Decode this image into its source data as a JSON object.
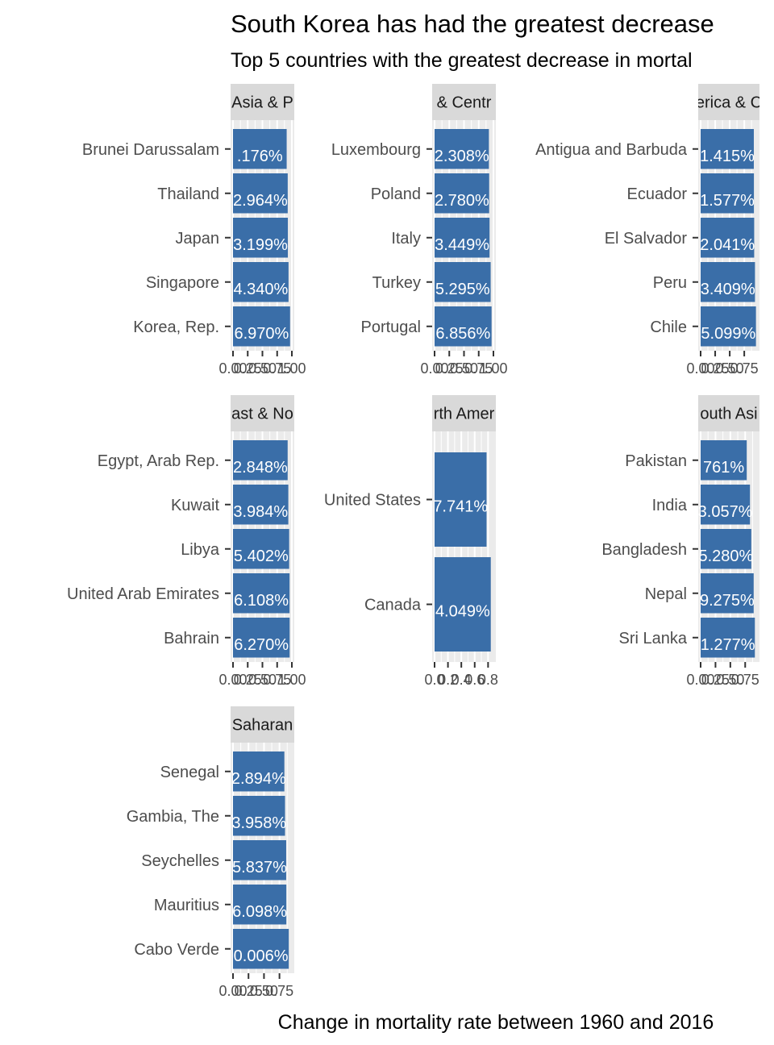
{
  "chart_data": {
    "type": "bar",
    "orientation": "horizontal",
    "title": "South Korea has had the greatest decrease",
    "subtitle": "Top 5 countries with the greatest decrease in mortal",
    "xlabel": "Change in mortality rate between 1960 and 2016",
    "ylabel": "",
    "grid": true,
    "colors": {
      "bar": "#3a6ea8",
      "panel": "#ebebeb",
      "strip": "#d9d9d9",
      "grid": "#ffffff"
    },
    "facets": [
      {
        "strip": "Asia & P",
        "categories": [
          "Brunei Darussalam",
          "Thailand",
          "Japan",
          "Singapore",
          "Korea, Rep."
        ],
        "values": [
          0.9118,
          0.9296,
          0.932,
          0.9434,
          0.9697
        ],
        "labels": [
          ".176%",
          "2.964%",
          "3.199%",
          "4.340%",
          "6.970%"
        ],
        "ticks": [
          "0.00",
          "0.25",
          "0.50",
          "0.75",
          "1.00"
        ],
        "xlim": [
          0,
          1.0
        ]
      },
      {
        "strip": "& Centr",
        "categories": [
          "Luxembourg",
          "Poland",
          "Italy",
          "Turkey",
          "Portugal"
        ],
        "values": [
          0.9231,
          0.9278,
          0.9345,
          0.953,
          0.9686
        ],
        "labels": [
          "2.308%",
          "2.780%",
          "3.449%",
          "5.295%",
          "6.856%"
        ],
        "ticks": [
          "0.00",
          "0.25",
          "0.50",
          "0.75",
          "1.00"
        ],
        "xlim": [
          0,
          1.0
        ]
      },
      {
        "strip": "erica & C",
        "categories": [
          "Antigua and Barbuda",
          "Ecuador",
          "El Salvador",
          "Peru",
          "Chile"
        ],
        "values": [
          0.9142,
          0.9158,
          0.9204,
          0.9341,
          0.951
        ],
        "labels": [
          "1.415%",
          "1.577%",
          "2.041%",
          "3.409%",
          "5.099%"
        ],
        "ticks": [
          "0.00",
          "0.25",
          "0.50",
          "0.75"
        ],
        "xlim": [
          0,
          0.97
        ]
      },
      {
        "strip": "ast & No",
        "categories": [
          "Egypt, Arab Rep.",
          "Kuwait",
          "Libya",
          "United Arab Emirates",
          "Bahrain"
        ],
        "values": [
          0.9285,
          0.9398,
          0.954,
          0.9611,
          0.9627
        ],
        "labels": [
          "2.848%",
          "3.984%",
          "5.402%",
          "6.108%",
          "6.270%"
        ],
        "ticks": [
          "0.00",
          "0.25",
          "0.50",
          "0.75",
          "1.00"
        ],
        "xlim": [
          0,
          1.0
        ]
      },
      {
        "strip": "rth Amer",
        "categories": [
          "United States",
          "Canada"
        ],
        "values": [
          0.7774,
          0.8405
        ],
        "labels": [
          "7.741%",
          "4.049%"
        ],
        "ticks": [
          "0.0",
          "0.2",
          "0.4",
          "0.6",
          "0.8"
        ],
        "xlim": [
          0,
          0.88
        ]
      },
      {
        "strip": "outh Asi",
        "categories": [
          "Pakistan",
          "India",
          "Bangladesh",
          "Nepal",
          "Sri Lanka"
        ],
        "values": [
          0.7761,
          0.8306,
          0.8528,
          0.8928,
          0.9128
        ],
        "labels": [
          "761%",
          "3.057%",
          "5.280%",
          "9.275%",
          "1.277%"
        ],
        "ticks": [
          "0.00",
          "0.25",
          "0.50",
          "0.75"
        ],
        "xlim": [
          0,
          0.95
        ]
      },
      {
        "strip": "Saharan",
        "categories": [
          "Senegal",
          "Gambia, The",
          "Seychelles",
          "Mauritius",
          "Cabo Verde"
        ],
        "values": [
          0.8289,
          0.8396,
          0.8584,
          0.861,
          0.9001
        ],
        "labels": [
          "2.894%",
          "3.958%",
          "5.837%",
          "6.098%",
          "0.006%"
        ],
        "ticks": [
          "0.00",
          "0.25",
          "0.50",
          "0.75"
        ],
        "xlim": [
          0,
          0.95
        ]
      }
    ]
  }
}
